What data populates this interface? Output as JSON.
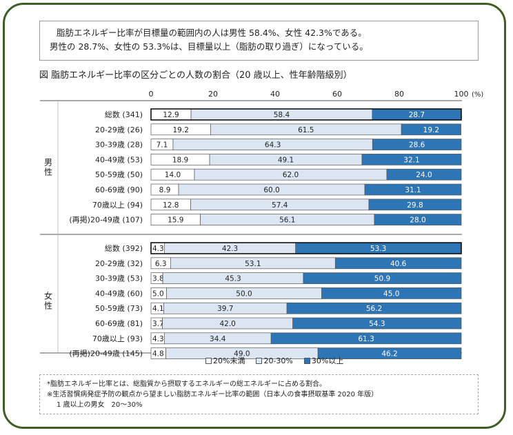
{
  "summary": {
    "line1": "脂肪エネルギー比率が目標量の範囲内の人は男性 58.4%、女性 42.3%である。",
    "line2": "男性の 28.7%、女性の 53.3%は、目標量以上（脂肪の取り過ぎ）になっている。"
  },
  "chart_title": "図  脂肪エネルギー比率の区分ごとの人数の割合（20 歳以上、性年齢階級別）",
  "notes": {
    "line1": "*脂肪エネルギー比率とは、総脂質から摂取するエネルギーの総エネルギーに占める割合。",
    "line2": "※生活習慣病発症予防の観点から望ましい脂肪エネルギー比率の範囲（日本人の食事摂取基準 2020 年版）",
    "line3": "1 歳以上の男女　20～30%"
  },
  "colors": {
    "low": "#ffffff",
    "mid": "#dce6f2",
    "high": "#2e75b6",
    "border": "#555555"
  },
  "chart_data": {
    "type": "bar",
    "orientation": "horizontal",
    "stacked": true,
    "xlim": [
      0,
      100
    ],
    "xticks": [
      "0",
      "20",
      "40",
      "60",
      "80",
      "100"
    ],
    "unit": "(%)",
    "legend": [
      "20%未満",
      "20-30%",
      "30%以上"
    ],
    "legend_position": "bottom",
    "groups": [
      {
        "name": "男性",
        "categories": [
          "総数 (341)",
          "20-29歳 (26)",
          "30-39歳 (28)",
          "40-49歳 (53)",
          "50-59歳 (50)",
          "60-69歳 (90)",
          "70歳以上 (94)",
          "(再掲)20-49歳 (107)"
        ],
        "series": [
          {
            "name": "20%未満",
            "values": [
              12.9,
              19.2,
              7.1,
              18.9,
              14.0,
              8.9,
              12.8,
              15.9
            ]
          },
          {
            "name": "20-30%",
            "values": [
              58.4,
              61.5,
              64.3,
              49.1,
              62.0,
              60.0,
              57.4,
              56.1
            ]
          },
          {
            "name": "30%以上",
            "values": [
              28.7,
              19.2,
              28.6,
              32.1,
              24.0,
              31.1,
              29.8,
              28.0
            ]
          }
        ],
        "labels": [
          [
            "12.9",
            "58.4",
            "28.7"
          ],
          [
            "19.2",
            "61.5",
            "19.2"
          ],
          [
            "7.1",
            "64.3",
            "28.6"
          ],
          [
            "18.9",
            "49.1",
            "32.1"
          ],
          [
            "14.0",
            "62.0",
            "24.0"
          ],
          [
            "8.9",
            "60.0",
            "31.1"
          ],
          [
            "12.8",
            "57.4",
            "29.8"
          ],
          [
            "15.9",
            "56.1",
            "28.0"
          ]
        ]
      },
      {
        "name": "女性",
        "categories": [
          "総数 (392)",
          "20-29歳 (32)",
          "30-39歳 (53)",
          "40-49歳 (60)",
          "50-59歳 (73)",
          "60-69歳 (81)",
          "70歳以上 (93)",
          "(再掲)20-49歳 (145)"
        ],
        "series": [
          {
            "name": "20%未満",
            "values": [
              4.3,
              6.3,
              3.8,
              5.0,
              4.1,
              3.7,
              4.3,
              4.8
            ]
          },
          {
            "name": "20-30%",
            "values": [
              42.3,
              53.1,
              45.3,
              50.0,
              39.7,
              42.0,
              34.4,
              49.0
            ]
          },
          {
            "name": "30%以上",
            "values": [
              53.3,
              40.6,
              50.9,
              45.0,
              56.2,
              54.3,
              61.3,
              46.2
            ]
          }
        ],
        "labels": [
          [
            "4.3",
            "42.3",
            "53.3"
          ],
          [
            "6.3",
            "53.1",
            "40.6"
          ],
          [
            "3.8",
            "45.3",
            "50.9"
          ],
          [
            "5.0",
            "50.0",
            "45.0"
          ],
          [
            "4.1",
            "39.7",
            "56.2"
          ],
          [
            "3.7",
            "42.0",
            "54.3"
          ],
          [
            "4.3",
            "34.4",
            "61.3"
          ],
          [
            "4.8",
            "49.0",
            "46.2"
          ]
        ]
      }
    ]
  }
}
